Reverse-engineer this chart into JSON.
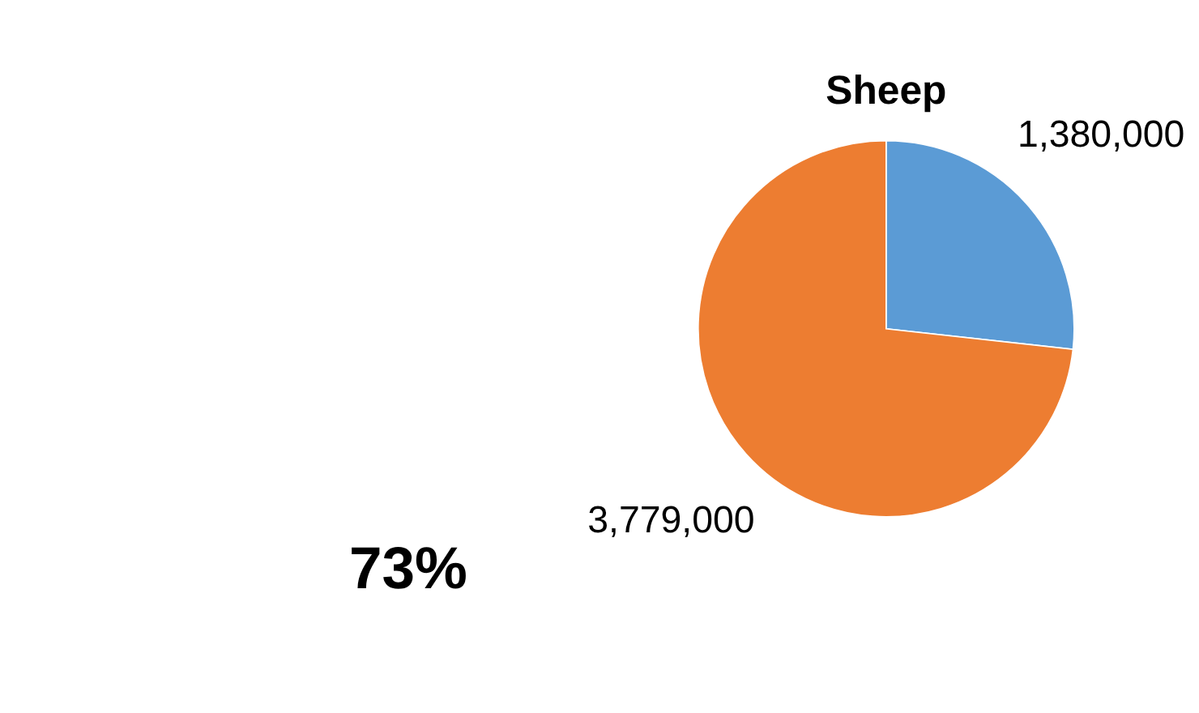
{
  "chart_data": {
    "type": "pie",
    "title": "Sheep",
    "categories": [
      null,
      null
    ],
    "values": [
      1380000,
      3779000
    ],
    "colors": [
      "#5b9bd5",
      "#ed7d31"
    ],
    "value_labels": [
      "1,380,000",
      "3,779,000"
    ],
    "annotations": [
      "73%"
    ]
  }
}
